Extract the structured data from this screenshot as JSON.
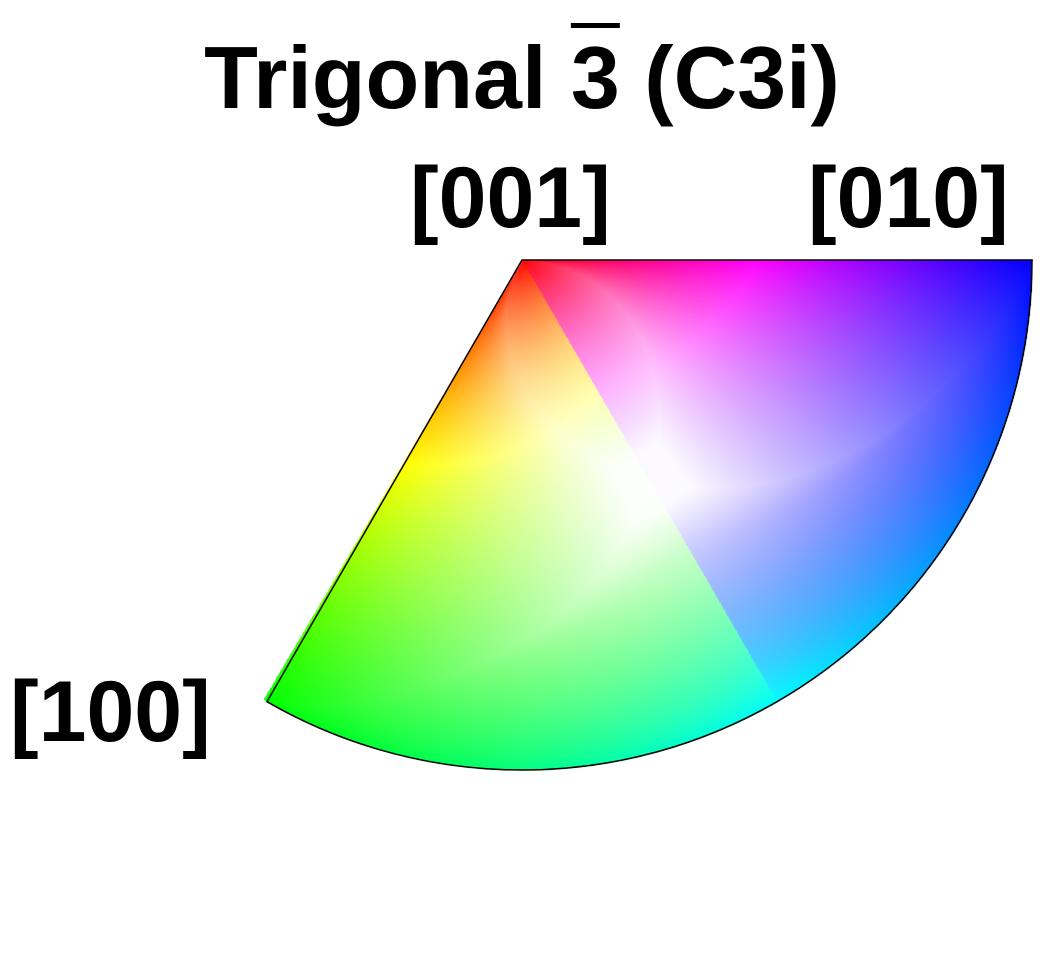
{
  "title": {
    "prefix": "Trigonal ",
    "overbar_symbol": "3",
    "suffix": " (C3i)"
  },
  "poles": {
    "p001": "[001]",
    "p010": "[010]",
    "p100": "[100]"
  },
  "colors": {
    "corner_001": "#ff0000",
    "corner_010": "#0000ff",
    "corner_100": "#00ff00",
    "center": "#ffffff"
  }
}
